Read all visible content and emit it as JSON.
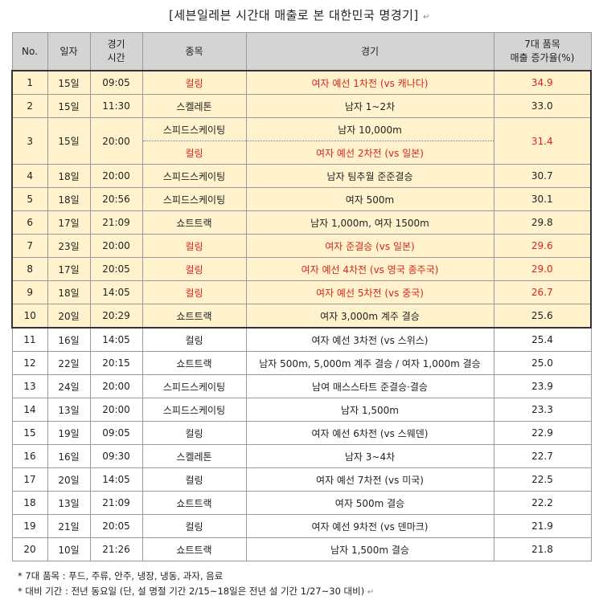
{
  "title": "[세븐일레븐 시간대 매출로 본 대한민국 명경기]",
  "title_mark": "↵",
  "headers": {
    "no": "No.",
    "date": "일자",
    "time": "경기\n시간",
    "sport": "종목",
    "event": "경기",
    "rate": "7대 품목\n매출 증가율(%)"
  },
  "rows": [
    {
      "no": "1",
      "date": "15일",
      "time": "09:05",
      "sport": "컬링",
      "event": "여자 예선 1차전 (vs 캐나다)",
      "rate": "34.9",
      "hl": true,
      "red": true
    },
    {
      "no": "2",
      "date": "15일",
      "time": "11:30",
      "sport": "스켈레톤",
      "event": "남자 1~2차",
      "rate": "33.0",
      "hl": true,
      "red": false
    },
    {
      "no": "3",
      "date": "15일",
      "time": "20:00",
      "sport": "스피드스케이팅",
      "event": "남자 10,000m",
      "rate": "31.4",
      "hl": true,
      "red": false,
      "rateRed": true,
      "sub": {
        "sport": "컬링",
        "event": "여자 예선 2차전 (vs 일본)",
        "red": true
      }
    },
    {
      "no": "4",
      "date": "18일",
      "time": "20:00",
      "sport": "스피드스케이팅",
      "event": "남자 팀추월 준준결승",
      "rate": "30.7",
      "hl": true,
      "red": false
    },
    {
      "no": "5",
      "date": "18일",
      "time": "20:56",
      "sport": "스피드스케이팅",
      "event": "여자 500m",
      "rate": "30.1",
      "hl": true,
      "red": false
    },
    {
      "no": "6",
      "date": "17일",
      "time": "21:09",
      "sport": "쇼트트랙",
      "event": "남자 1,000m, 여자 1500m",
      "rate": "29.8",
      "hl": true,
      "red": false
    },
    {
      "no": "7",
      "date": "23일",
      "time": "20:00",
      "sport": "컬링",
      "event": "여자 준결승 (vs 일본)",
      "rate": "29.6",
      "hl": true,
      "red": true
    },
    {
      "no": "8",
      "date": "17일",
      "time": "20:05",
      "sport": "컬링",
      "event": "여자 예선 4차전 (vs 영국 종주국)",
      "rate": "29.0",
      "hl": true,
      "red": true
    },
    {
      "no": "9",
      "date": "18일",
      "time": "14:05",
      "sport": "컬링",
      "event": "여자 예선 5차전 (vs 중국)",
      "rate": "26.7",
      "hl": true,
      "red": true
    },
    {
      "no": "10",
      "date": "20일",
      "time": "20:29",
      "sport": "쇼트트랙",
      "event": "여자 3,000m 계주 결승",
      "rate": "25.6",
      "hl": true,
      "red": false
    },
    {
      "no": "11",
      "date": "16일",
      "time": "14:05",
      "sport": "컬링",
      "event": "여자 예선 3차전 (vs 스위스)",
      "rate": "25.4",
      "hl": false,
      "red": false
    },
    {
      "no": "12",
      "date": "22일",
      "time": "20:15",
      "sport": "쇼트트랙",
      "event": "남자 500m, 5,000m 계주 결승 / 여자 1,000m 결승",
      "rate": "25.0",
      "hl": false,
      "red": false
    },
    {
      "no": "13",
      "date": "24일",
      "time": "20:00",
      "sport": "스피드스케이팅",
      "event": "남여 매스스타트 준결승·결승",
      "rate": "23.9",
      "hl": false,
      "red": false
    },
    {
      "no": "14",
      "date": "13일",
      "time": "20:00",
      "sport": "스피드스케이팅",
      "event": "남자 1,500m",
      "rate": "23.3",
      "hl": false,
      "red": false
    },
    {
      "no": "15",
      "date": "19일",
      "time": "09:05",
      "sport": "컬링",
      "event": "여자 예선 6차전 (vs 스웨덴)",
      "rate": "22.9",
      "hl": false,
      "red": false
    },
    {
      "no": "16",
      "date": "16일",
      "time": "09:30",
      "sport": "스켈레톤",
      "event": "남자 3~4차",
      "rate": "22.7",
      "hl": false,
      "red": false
    },
    {
      "no": "17",
      "date": "20일",
      "time": "14:05",
      "sport": "컬링",
      "event": "여자 예선 7차전 (vs 미국)",
      "rate": "22.5",
      "hl": false,
      "red": false
    },
    {
      "no": "18",
      "date": "13일",
      "time": "21:09",
      "sport": "쇼트트랙",
      "event": "여자 500m 결승",
      "rate": "22.2",
      "hl": false,
      "red": false
    },
    {
      "no": "19",
      "date": "21일",
      "time": "20:05",
      "sport": "컬링",
      "event": "여자 예선 9차전 (vs 덴마크)",
      "rate": "21.9",
      "hl": false,
      "red": false
    },
    {
      "no": "20",
      "date": "10일",
      "time": "21:26",
      "sport": "쇼트트랙",
      "event": "남자 1,500m 결승",
      "rate": "21.8",
      "hl": false,
      "red": false
    }
  ],
  "notes": [
    "* 7대 품목 : 푸드, 주류, 안주, 냉장, 냉동, 과자, 음료",
    "* 대비 기간 : 전년 동요일 (단, 설 명절 기간 2/15~18일은 전년 설 기간 1/27~30 대비)"
  ],
  "notes_mark": "↵",
  "colors": {
    "highlight": "#fff2cc",
    "header": "#d4d4d4",
    "red_text": "#d9251d"
  }
}
